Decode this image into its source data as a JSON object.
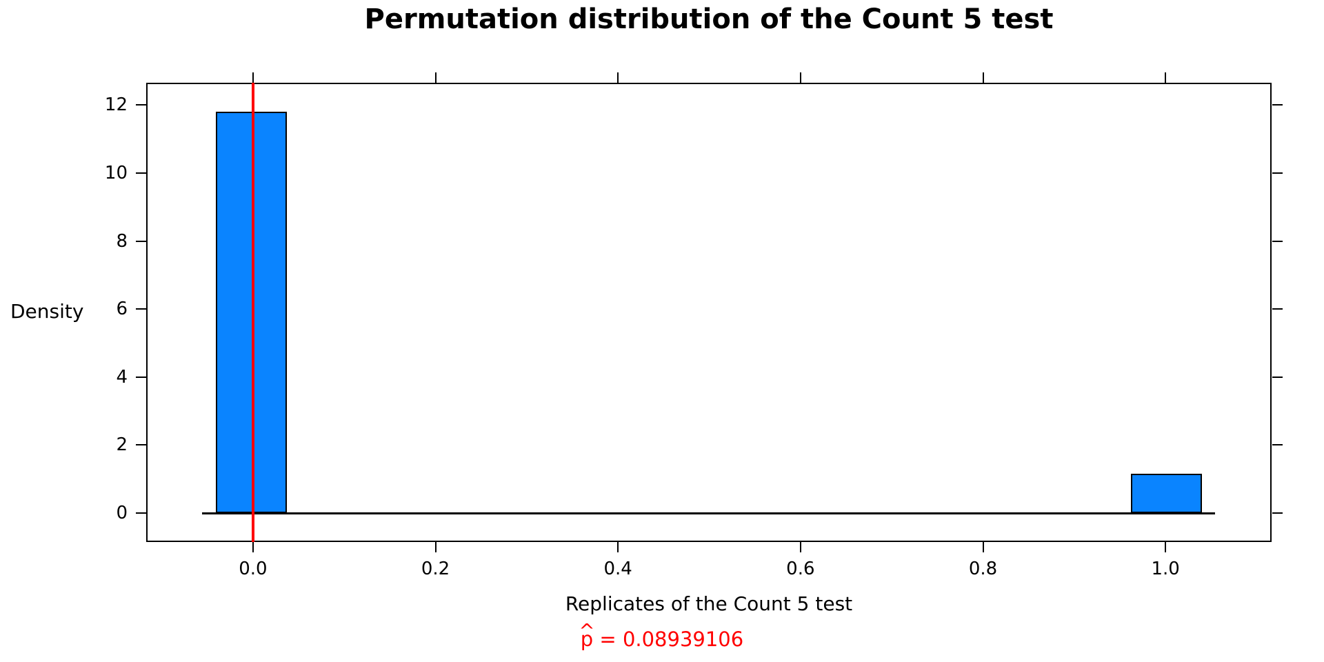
{
  "chart_data": {
    "type": "bar",
    "subtype": "histogram",
    "title": "Permutation distribution of the Count 5 test",
    "xlabel": "Replicates of the Count 5 test",
    "ylabel": "Density",
    "xlim": [
      -0.1163,
      1.1155
    ],
    "ylim": [
      -0.831,
      12.636
    ],
    "grid": false,
    "legend": null,
    "tick_sides": [
      "bottom",
      "left",
      "top",
      "right"
    ],
    "x_ticks": {
      "values": [
        0,
        0.2,
        0.4,
        0.6,
        0.8,
        1.0
      ],
      "labels": [
        "0.0",
        "0.2",
        "0.4",
        "0.6",
        "0.8",
        "1.0"
      ]
    },
    "y_ticks": {
      "values": [
        0,
        2,
        4,
        6,
        8,
        10,
        12
      ],
      "labels": [
        "0",
        "2",
        "4",
        "6",
        "8",
        "10",
        "12"
      ]
    },
    "bars": [
      {
        "x_left": -0.0407,
        "x_right": 0.0371,
        "density": 11.8,
        "bin_center": 0
      },
      {
        "x_left": 0.9621,
        "x_right": 1.0399,
        "density": 1.15,
        "bin_center": 1
      }
    ],
    "baseline": {
      "y": 0,
      "x_from": -0.0559,
      "x_to": 1.0543
    },
    "vline": {
      "x": 0,
      "color": "#ff0000"
    },
    "annotation": {
      "text": "p̂ = 0.08939106",
      "p": "p",
      "hat": "^",
      "rest": " = 0.08939106",
      "value": 0.08939106,
      "color": "#ff0000"
    },
    "colors": {
      "bar_fill": "#0a84ff",
      "bar_border": "#000000",
      "vline": "#ff0000",
      "axis": "#000000",
      "text": "#000000",
      "background": "#ffffff"
    }
  }
}
